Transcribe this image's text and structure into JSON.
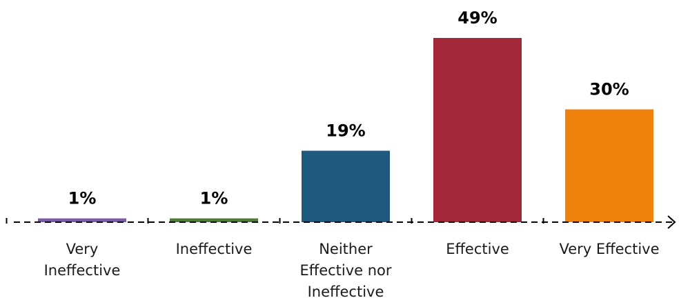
{
  "chart_data": {
    "type": "bar",
    "title": "",
    "xlabel": "",
    "ylabel": "",
    "ylim": [
      0,
      49
    ],
    "grid": false,
    "legend": "none",
    "categories": [
      "Very Ineffective",
      "Ineffective",
      "Neither Effective nor Ineffective",
      "Effective",
      "Very Effective"
    ],
    "category_lines": [
      [
        "Very",
        "Ineffective"
      ],
      [
        "Ineffective"
      ],
      [
        "Neither",
        "Effective nor",
        "Ineffective"
      ],
      [
        "Effective"
      ],
      [
        "Very Effective"
      ]
    ],
    "values": [
      1,
      1,
      19,
      49,
      30
    ],
    "value_labels": [
      "1%",
      "1%",
      "19%",
      "49%",
      "30%"
    ],
    "colors": [
      "#7b5aa6",
      "#4a7c3a",
      "#1f5a7e",
      "#a3293a",
      "#ef820d"
    ],
    "axis_color": "#000000"
  }
}
